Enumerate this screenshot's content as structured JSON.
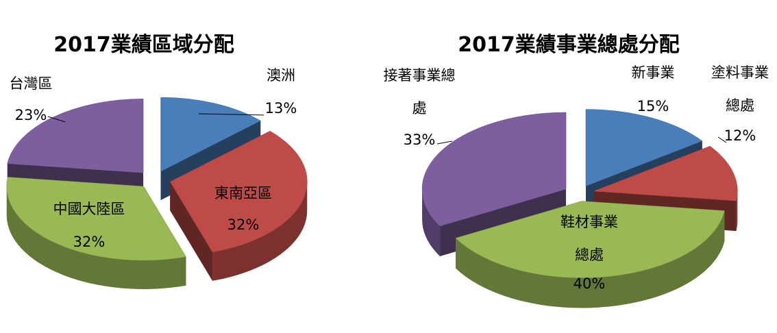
{
  "chart_data": [
    {
      "type": "pie",
      "title": "2017業績區域分配",
      "categories": [
        "澳洲",
        "東南亞區",
        "中國大陸區",
        "台灣區"
      ],
      "values": [
        13,
        32,
        32,
        23
      ],
      "value_labels": [
        "13%",
        "32%",
        "32%",
        "23%"
      ],
      "colors": [
        "#4a7ebb",
        "#be4b48",
        "#98b954",
        "#7d5fa0"
      ]
    },
    {
      "type": "pie",
      "title": "2017業績事業總處分配",
      "categories": [
        "新事業",
        "塗料事業總處",
        "鞋材事業總處",
        "接著事業總處"
      ],
      "values": [
        15,
        12,
        40,
        33
      ],
      "value_labels": [
        "15%",
        "12%",
        "40%",
        "33%"
      ],
      "colors": [
        "#4a7ebb",
        "#be4b48",
        "#98b954",
        "#7d5fa0"
      ]
    }
  ]
}
